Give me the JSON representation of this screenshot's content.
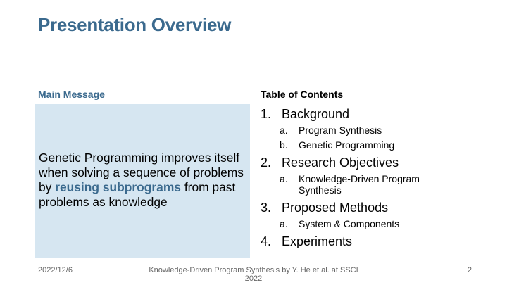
{
  "title": "Presentation Overview",
  "main_message": {
    "heading": "Main Message",
    "text_before": "Genetic Programming improves itself when solving a sequence of problems by ",
    "highlight": "reusing subprograms",
    "text_after": " from past problems as knowledge"
  },
  "toc": {
    "heading": "Table of Contents",
    "items": [
      {
        "num": "1.",
        "label": "Background",
        "subs": [
          {
            "letter": "a.",
            "label": "Program Synthesis"
          },
          {
            "letter": "b.",
            "label": "Genetic Programming"
          }
        ]
      },
      {
        "num": "2.",
        "label": "Research Objectives",
        "subs": [
          {
            "letter": "a.",
            "label": "Knowledge-Driven Program Synthesis"
          }
        ]
      },
      {
        "num": "3.",
        "label": "Proposed Methods",
        "subs": [
          {
            "letter": "a.",
            "label": "System & Components"
          }
        ]
      },
      {
        "num": "4.",
        "label": "Experiments",
        "subs": []
      }
    ]
  },
  "footer": {
    "date": "2022/12/6",
    "citation": "Knowledge-Driven Program Synthesis by Y. He et al. at SSCI 2022",
    "page": "2"
  }
}
